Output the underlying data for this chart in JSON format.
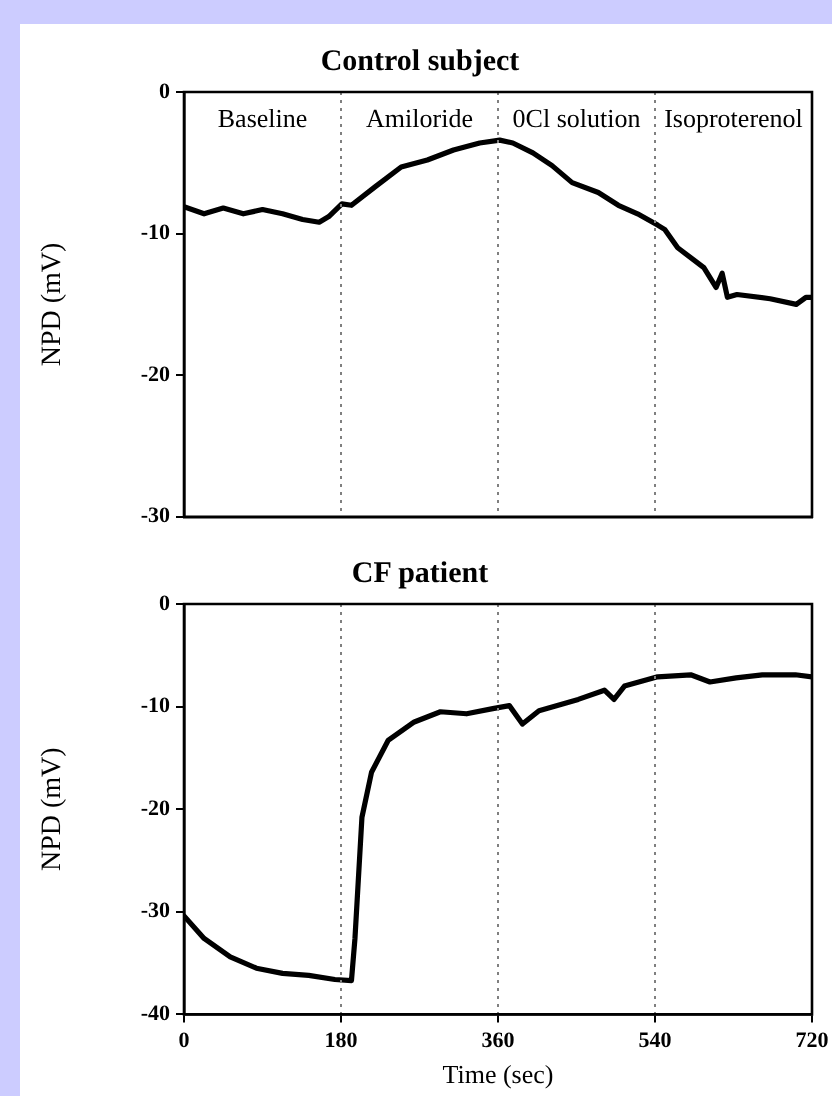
{
  "chart_data": [
    {
      "type": "line",
      "title": "Control subject",
      "ylabel": "NPD (mV)",
      "xlim": [
        0,
        720
      ],
      "ylim": [
        -30,
        0
      ],
      "yticks": [
        0,
        -10,
        -20,
        -30
      ],
      "tick_labels": "y",
      "grid": false,
      "legend": false,
      "marker": "none",
      "line_style": "solid",
      "series": [
        {
          "color": "#000000",
          "x": [
            0,
            23,
            45,
            68,
            90,
            113,
            136,
            155,
            166,
            181,
            192,
            219,
            249,
            279,
            309,
            339,
            362,
            377,
            400,
            422,
            445,
            475,
            498,
            520,
            543,
            551,
            566,
            596,
            610,
            617,
            623,
            634,
            672,
            702,
            713,
            720
          ],
          "values": [
            -8.1,
            -8.6,
            -8.2,
            -8.6,
            -8.3,
            -8.6,
            -9.0,
            -9.2,
            -8.8,
            -7.9,
            -8.0,
            -6.7,
            -5.3,
            -4.8,
            -4.1,
            -3.6,
            -3.4,
            -3.6,
            -4.3,
            -5.2,
            -6.4,
            -7.1,
            -8.0,
            -8.6,
            -9.4,
            -9.7,
            -11.0,
            -12.4,
            -13.8,
            -12.8,
            -14.5,
            -14.3,
            -14.6,
            -15.0,
            -14.5,
            -14.5
          ]
        }
      ],
      "ref_lines": [
        {
          "axis": "x",
          "value": 180,
          "color": "#808080",
          "line_style": "dotted"
        },
        {
          "axis": "x",
          "value": 360,
          "color": "#808080",
          "line_style": "dotted"
        },
        {
          "axis": "x",
          "value": 540,
          "color": "#808080",
          "line_style": "dotted"
        }
      ],
      "annotations": [
        "Baseline",
        "Amiloride",
        "0Cl solution",
        "Isoproterenol"
      ]
    },
    {
      "type": "line",
      "title": "CF patient",
      "xlabel": "Time (sec)",
      "ylabel": "NPD (mV)",
      "xlim": [
        0,
        720
      ],
      "xticks": [
        0,
        180,
        360,
        540,
        720
      ],
      "ylim": [
        -40,
        0
      ],
      "yticks": [
        0,
        -10,
        -20,
        -30,
        -40
      ],
      "grid": false,
      "legend": false,
      "marker": "none",
      "line_style": "solid",
      "series": [
        {
          "color": "#000000",
          "x": [
            0,
            23,
            53,
            83,
            113,
            143,
            173,
            192,
            196,
            204,
            215,
            234,
            264,
            294,
            324,
            354,
            373,
            388,
            407,
            452,
            482,
            493,
            505,
            543,
            581,
            603,
            633,
            663,
            701,
            720
          ],
          "values": [
            -30.4,
            -32.6,
            -34.4,
            -35.5,
            -36.0,
            -36.2,
            -36.6,
            -36.7,
            -32.6,
            -20.8,
            -16.4,
            -13.3,
            -11.5,
            -10.5,
            -10.7,
            -10.2,
            -9.9,
            -11.7,
            -10.4,
            -9.3,
            -8.4,
            -9.3,
            -8.0,
            -7.1,
            -6.9,
            -7.6,
            -7.2,
            -6.9,
            -6.9,
            -7.1
          ]
        }
      ],
      "ref_lines": [
        {
          "axis": "x",
          "value": 180,
          "color": "#808080",
          "line_style": "dotted"
        },
        {
          "axis": "x",
          "value": 360,
          "color": "#808080",
          "line_style": "dotted"
        },
        {
          "axis": "x",
          "value": 540,
          "color": "#808080",
          "line_style": "dotted"
        }
      ]
    }
  ]
}
